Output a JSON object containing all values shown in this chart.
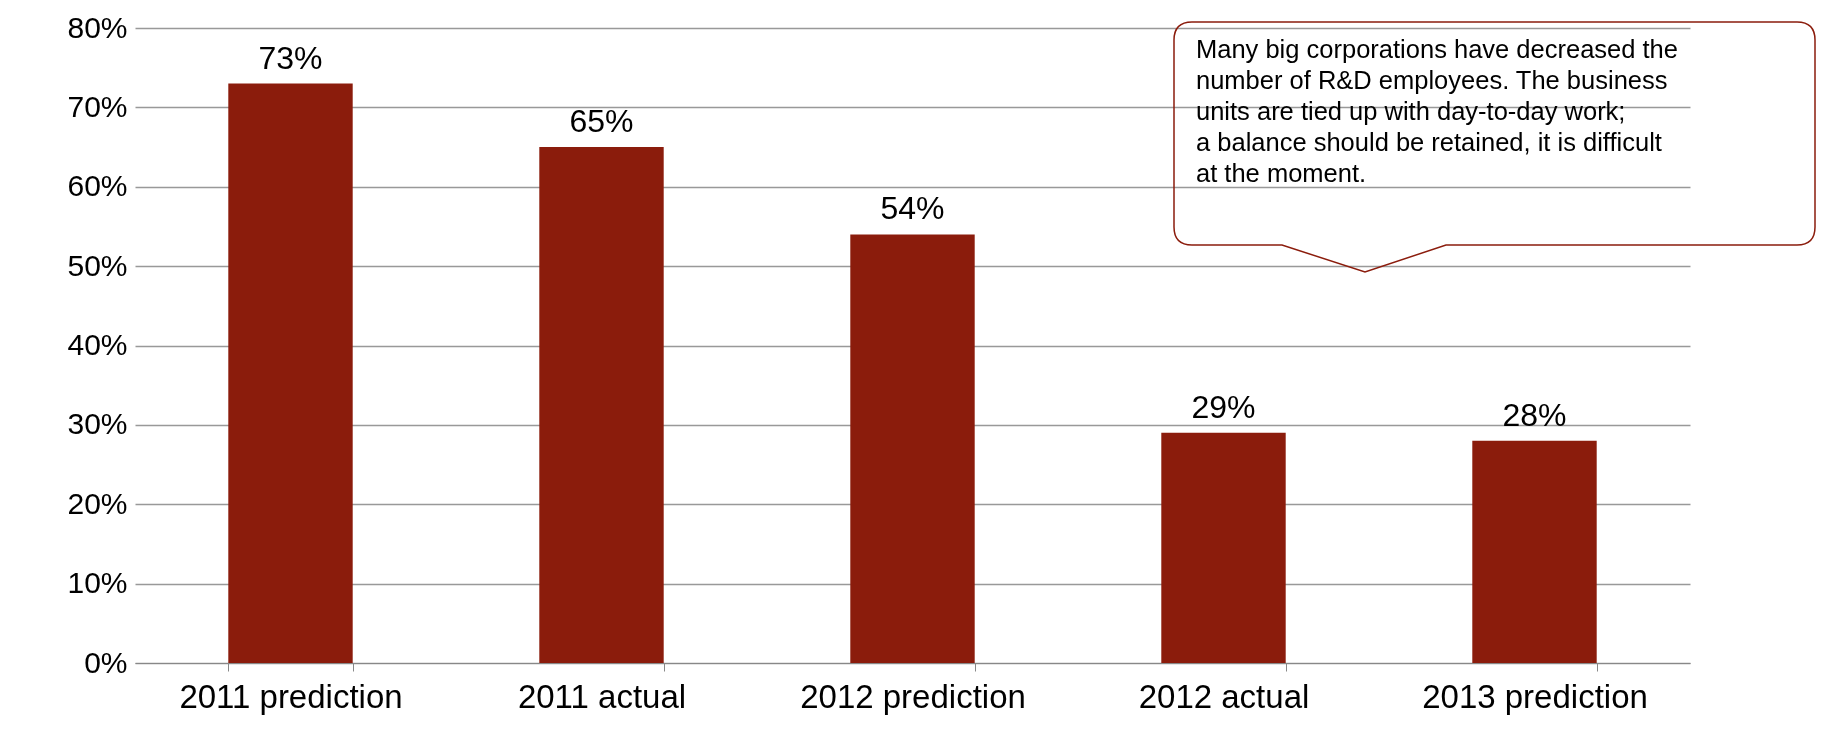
{
  "chart_data": {
    "type": "bar",
    "categories": [
      "2011 prediction",
      "2011 actual",
      "2012 prediction",
      "2012 actual",
      "2013 prediction"
    ],
    "values": [
      73,
      65,
      54,
      29,
      28
    ],
    "value_labels": [
      "73%",
      "65%",
      "54%",
      "29%",
      "28%"
    ],
    "color": "#8b1c0c",
    "ylim": [
      0,
      80
    ],
    "yticks": [
      {
        "value": 0,
        "label": "0%"
      },
      {
        "value": 10,
        "label": "10%"
      },
      {
        "value": 20,
        "label": "20%"
      },
      {
        "value": 30,
        "label": "30%"
      },
      {
        "value": 40,
        "label": "40%"
      },
      {
        "value": 50,
        "label": "50%"
      },
      {
        "value": 60,
        "label": "60%"
      },
      {
        "value": 70,
        "label": "70%"
      },
      {
        "value": 80,
        "label": "80%"
      }
    ],
    "grid": "y",
    "annotations": [
      "Many big corporations have decreased the\nnumber of R&D employees. The business\nunits are tied up with day-to-day work;\na balance should be retained, it is difficult\nat the moment."
    ]
  }
}
